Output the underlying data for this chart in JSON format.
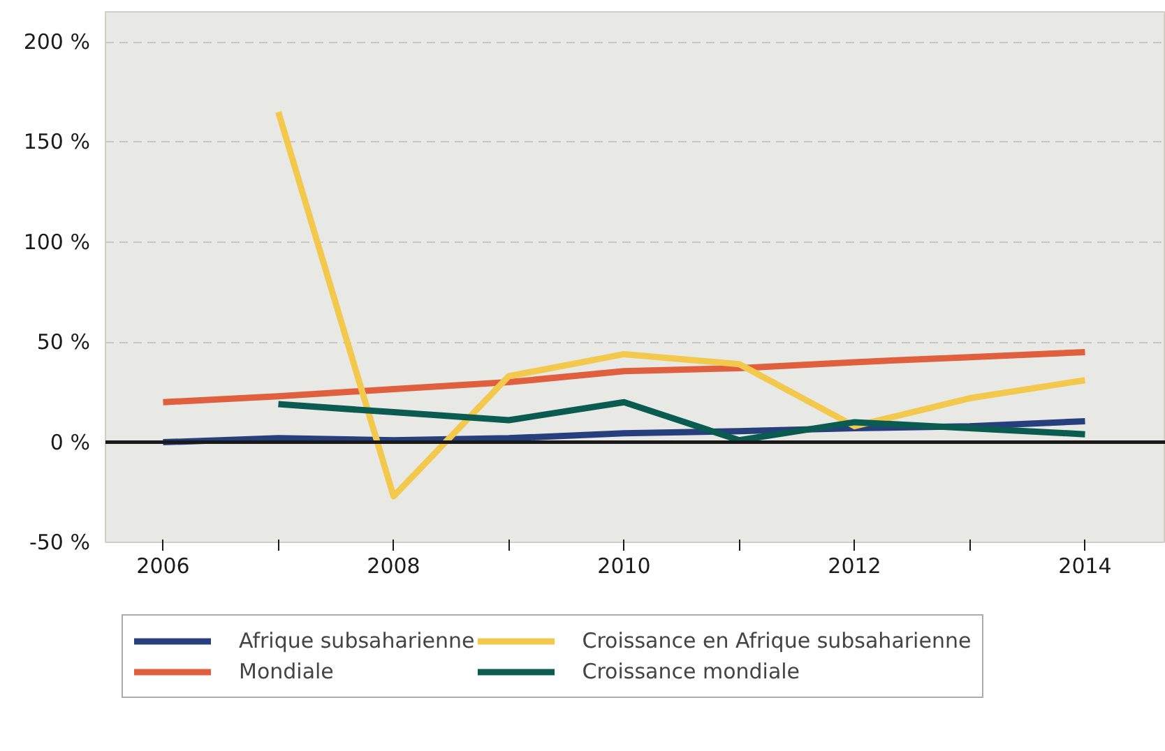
{
  "chart_data": {
    "type": "line",
    "x": [
      2006,
      2007,
      2008,
      2009,
      2010,
      2011,
      2012,
      2013,
      2014
    ],
    "series": [
      {
        "name": "Afrique subsaharienne",
        "color": "#283f7e",
        "values": [
          0,
          2,
          1,
          2,
          4.5,
          5.5,
          7,
          8,
          10.5
        ]
      },
      {
        "name": "Mondiale",
        "color": "#df5f3e",
        "values": [
          20,
          23,
          26.5,
          30,
          35.5,
          37,
          40,
          42.5,
          45
        ]
      },
      {
        "name": "Croissance en Afrique subsaharienne",
        "color": "#f3c94d",
        "values": [
          null,
          165,
          -27,
          33,
          44,
          39,
          8,
          22,
          31
        ]
      },
      {
        "name": "Croissance mondiale",
        "color": "#0b5c50",
        "values": [
          null,
          19,
          15,
          11,
          20,
          1,
          10,
          7,
          4
        ]
      }
    ],
    "xlim": [
      2005.5,
      2014.7
    ],
    "xticks": [
      2006,
      {
        "value": 2007,
        "label": null
      },
      2008,
      {
        "value": 2009,
        "label": null
      },
      2010,
      {
        "value": 2011,
        "label": null
      },
      2012,
      {
        "value": 2013,
        "label": null
      },
      2014
    ],
    "ylim": [
      -50,
      215
    ],
    "yticks": [
      {
        "value": -50,
        "label": "-50 %"
      },
      {
        "value": 0,
        "label": "0 %"
      },
      {
        "value": 50,
        "label": "50 %"
      },
      {
        "value": 100,
        "label": "100 %"
      },
      {
        "value": 150,
        "label": "150 %"
      },
      {
        "value": 200,
        "label": "200 %"
      }
    ],
    "grid": "y",
    "legend": "bottom",
    "line_style": "solid",
    "marker": "none",
    "ref_lines": [
      {
        "axis": "y",
        "value": 0,
        "color": "#1a1a1a",
        "line_style": "solid"
      }
    ]
  }
}
